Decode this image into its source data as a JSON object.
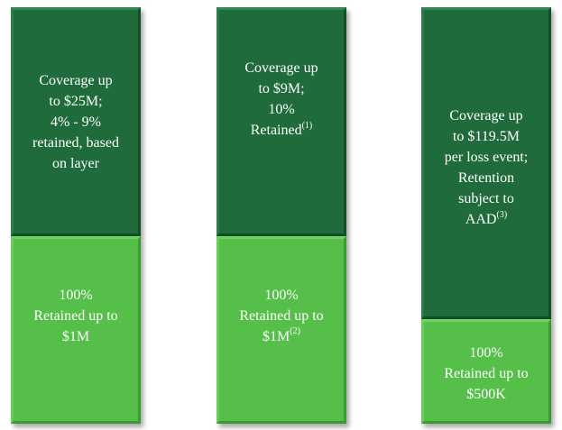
{
  "columns": [
    {
      "upper": {
        "lines": [
          "Coverage up",
          "to $25M;",
          "4% - 9%",
          "retained,  based",
          "on layer"
        ],
        "sup": ""
      },
      "lower": {
        "lines": [
          "100%",
          "Retained up to",
          "$1M"
        ],
        "sup": ""
      }
    },
    {
      "upper": {
        "lines": [
          "Coverage up",
          "to $9M;",
          "10%",
          "Retained"
        ],
        "sup": "(1)"
      },
      "lower": {
        "lines": [
          "100%",
          "Retained up to",
          "$1M"
        ],
        "sup": "(2)"
      }
    },
    {
      "upper": {
        "lines": [
          "Coverage up",
          "to $119.5M",
          "per loss event;",
          "Retention",
          "subject to",
          "AAD"
        ],
        "sup": "(3)"
      },
      "lower": {
        "lines": [
          "100%",
          "Retained up to",
          "$500K"
        ],
        "sup": ""
      }
    }
  ],
  "colors": {
    "dark_green": "#1f6b3c",
    "light_green": "#55bf4a",
    "text": "#ffffff"
  }
}
